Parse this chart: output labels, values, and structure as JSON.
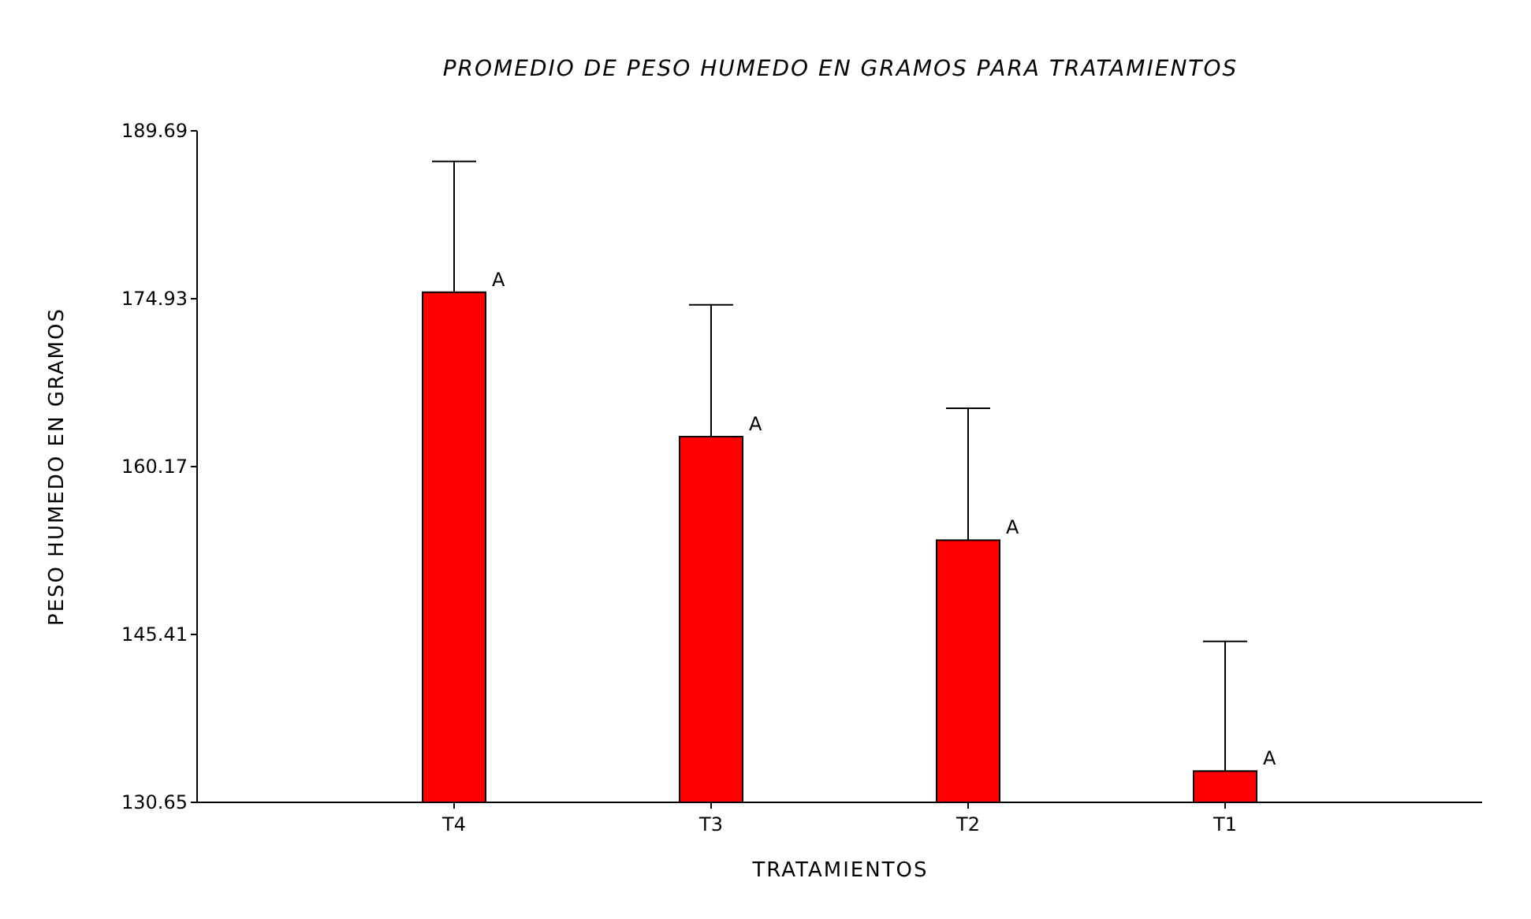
{
  "chart_data": {
    "type": "bar",
    "title": "PROMEDIO DE PESO HUMEDO EN GRAMOS PARA TRATAMIENTOS",
    "xlabel": "TRATAMIENTOS",
    "ylabel": "PESO HUMEDO EN GRAMOS",
    "categories": [
      "T4",
      "T3",
      "T2",
      "T1"
    ],
    "values": [
      175.5,
      162.8,
      153.7,
      133.4
    ],
    "errors": [
      [
        175.5,
        187.0
      ],
      [
        162.8,
        174.4
      ],
      [
        153.7,
        165.3
      ],
      [
        133.4,
        144.8
      ]
    ],
    "color": "#ff0000",
    "ylim": [
      130.65,
      189.69
    ],
    "yticks": [
      130.65,
      145.41,
      160.17,
      174.93,
      189.69
    ],
    "annotations": [
      {
        "text": "A",
        "x": "T4",
        "y": 175.5
      },
      {
        "text": "A",
        "x": "T3",
        "y": 162.8
      },
      {
        "text": "A",
        "x": "T2",
        "y": 153.7
      },
      {
        "text": "A",
        "x": "T1",
        "y": 133.4
      }
    ],
    "grid": false
  }
}
